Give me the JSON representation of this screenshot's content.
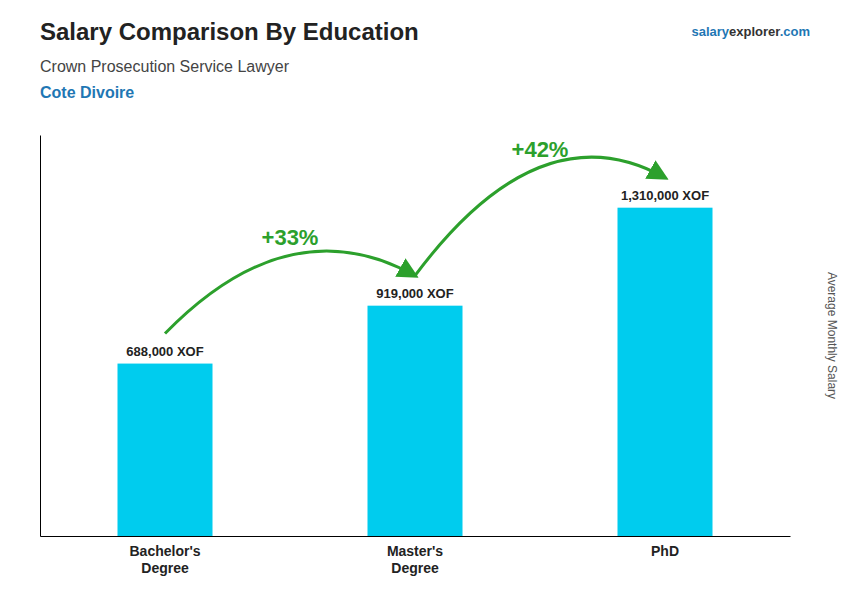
{
  "chart_data": {
    "type": "bar",
    "title": "Salary Comparison By Education",
    "subtitle": "Crown Prosecution Service Lawyer",
    "country": "Cote Divoire",
    "brand": [
      "salary",
      "explorer",
      ".com"
    ],
    "ylabel": "Average Monthly Salary",
    "categories": [
      "Bachelor's\nDegree",
      "Master's\nDegree",
      "PhD"
    ],
    "values": [
      688000,
      919000,
      1310000
    ],
    "value_labels": [
      "688,000 XOF",
      "919,000 XOF",
      "1,310,000 XOF"
    ],
    "data_labels": true,
    "color": "#00ccee",
    "ylim": [
      0,
      1600000
    ],
    "yticks": [],
    "tick_labels": "x",
    "annotations": [
      "+33%",
      "+42%"
    ]
  }
}
